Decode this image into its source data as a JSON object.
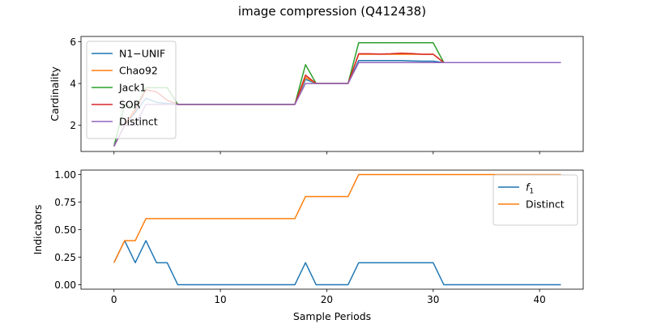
{
  "figure": {
    "title": "image compression (Q412438)"
  },
  "chart_data": [
    {
      "type": "line",
      "title": "image compression (Q412438)",
      "xlabel": "",
      "ylabel": "Cardinality",
      "xlim": [
        -3.1,
        44.1
      ],
      "ylim": [
        0.75,
        6.25
      ],
      "xticks": [
        0,
        10,
        20,
        30,
        40
      ],
      "yticks": [
        2,
        4,
        6
      ],
      "show_xticklabels": false,
      "legend_position": "upper-left",
      "x": [
        0,
        1,
        2,
        3,
        4,
        5,
        6,
        7,
        8,
        9,
        10,
        11,
        12,
        13,
        14,
        15,
        16,
        17,
        18,
        19,
        20,
        21,
        22,
        23,
        24,
        25,
        26,
        27,
        28,
        29,
        30,
        31,
        32,
        33,
        34,
        35,
        36,
        37,
        38,
        39,
        40,
        41,
        42
      ],
      "series": [
        {
          "name": "N1−UNIF",
          "color": "#1f77b4",
          "values": [
            1,
            2,
            2.6,
            3.3,
            3.1,
            3.05,
            3,
            3,
            3,
            3,
            3,
            3,
            3,
            3,
            3,
            3,
            3,
            3,
            4.2,
            4,
            4,
            4,
            4,
            5.1,
            5.1,
            5.1,
            5.1,
            5.1,
            5.08,
            5.07,
            5.07,
            5,
            5,
            5,
            5,
            5,
            5,
            5,
            5,
            5,
            5,
            5,
            5
          ]
        },
        {
          "name": "Chao92",
          "color": "#ff7f0e",
          "values": [
            1,
            2,
            2.8,
            3.7,
            3.6,
            3.2,
            3,
            3,
            3,
            3,
            3,
            3,
            3,
            3,
            3,
            3,
            3,
            3,
            4.3,
            4,
            4,
            4,
            4,
            5.4,
            5.4,
            5.4,
            5.4,
            5.4,
            5.4,
            5.4,
            5.4,
            5,
            5,
            5,
            5,
            5,
            5,
            5,
            5,
            5,
            5,
            5,
            5
          ]
        },
        {
          "name": "Jack1",
          "color": "#2ca02c",
          "values": [
            1,
            3,
            2.8,
            3.8,
            3.8,
            3.8,
            3,
            3,
            3,
            3,
            3,
            3,
            3,
            3,
            3,
            3,
            3,
            3,
            4.9,
            4,
            4,
            4,
            4,
            5.95,
            5.95,
            5.95,
            5.95,
            5.95,
            5.95,
            5.95,
            5.95,
            5,
            5,
            5,
            5,
            5,
            5,
            5,
            5,
            5,
            5,
            5,
            5
          ]
        },
        {
          "name": "SOR",
          "color": "#d62728",
          "values": [
            1,
            2,
            2.7,
            3.7,
            3.6,
            3.2,
            3,
            3,
            3,
            3,
            3,
            3,
            3,
            3,
            3,
            3,
            3,
            3,
            4.4,
            4,
            4,
            4,
            4,
            5.42,
            5.42,
            5.41,
            5.42,
            5.45,
            5.43,
            5.4,
            5.4,
            5,
            5,
            5,
            5,
            5,
            5,
            5,
            5,
            5,
            5,
            5,
            5
          ]
        },
        {
          "name": "Distinct",
          "color": "#9467bd",
          "values": [
            1,
            2,
            2,
            3,
            3,
            3,
            3,
            3,
            3,
            3,
            3,
            3,
            3,
            3,
            3,
            3,
            3,
            3,
            4,
            4,
            4,
            4,
            4,
            5,
            5,
            5,
            5,
            5,
            5,
            5,
            5,
            5,
            5,
            5,
            5,
            5,
            5,
            5,
            5,
            5,
            5,
            5,
            5
          ]
        }
      ]
    },
    {
      "type": "line",
      "title": "",
      "xlabel": "Sample Periods",
      "ylabel": "Indicators",
      "xlim": [
        -3.1,
        44.1
      ],
      "ylim": [
        -0.04,
        1.04
      ],
      "xticks": [
        0,
        10,
        20,
        30,
        40
      ],
      "yticks": [
        0.0,
        0.25,
        0.5,
        0.75,
        1.0
      ],
      "yticklabels": [
        "0.00",
        "0.25",
        "0.50",
        "0.75",
        "1.00"
      ],
      "show_xticklabels": true,
      "legend_position": "upper-right",
      "x": [
        0,
        1,
        2,
        3,
        4,
        5,
        6,
        7,
        8,
        9,
        10,
        11,
        12,
        13,
        14,
        15,
        16,
        17,
        18,
        19,
        20,
        21,
        22,
        23,
        24,
        25,
        26,
        27,
        28,
        29,
        30,
        31,
        32,
        33,
        34,
        35,
        36,
        37,
        38,
        39,
        40,
        41,
        42
      ],
      "series": [
        {
          "name": "f1",
          "label_main": "f",
          "label_sub": "1",
          "color": "#1f77b4",
          "values": [
            0.2,
            0.4,
            0.2,
            0.4,
            0.2,
            0.2,
            0,
            0,
            0,
            0,
            0,
            0,
            0,
            0,
            0,
            0,
            0,
            0,
            0.2,
            0,
            0,
            0,
            0,
            0.2,
            0.2,
            0.2,
            0.2,
            0.2,
            0.2,
            0.2,
            0.2,
            0,
            0,
            0,
            0,
            0,
            0,
            0,
            0,
            0,
            0,
            0,
            0
          ]
        },
        {
          "name": "Distinct",
          "color": "#ff7f0e",
          "values": [
            0.2,
            0.4,
            0.4,
            0.6,
            0.6,
            0.6,
            0.6,
            0.6,
            0.6,
            0.6,
            0.6,
            0.6,
            0.6,
            0.6,
            0.6,
            0.6,
            0.6,
            0.6,
            0.8,
            0.8,
            0.8,
            0.8,
            0.8,
            1,
            1,
            1,
            1,
            1,
            1,
            1,
            1,
            1,
            1,
            1,
            1,
            1,
            1,
            1,
            1,
            1,
            1,
            1,
            1
          ]
        }
      ]
    }
  ]
}
